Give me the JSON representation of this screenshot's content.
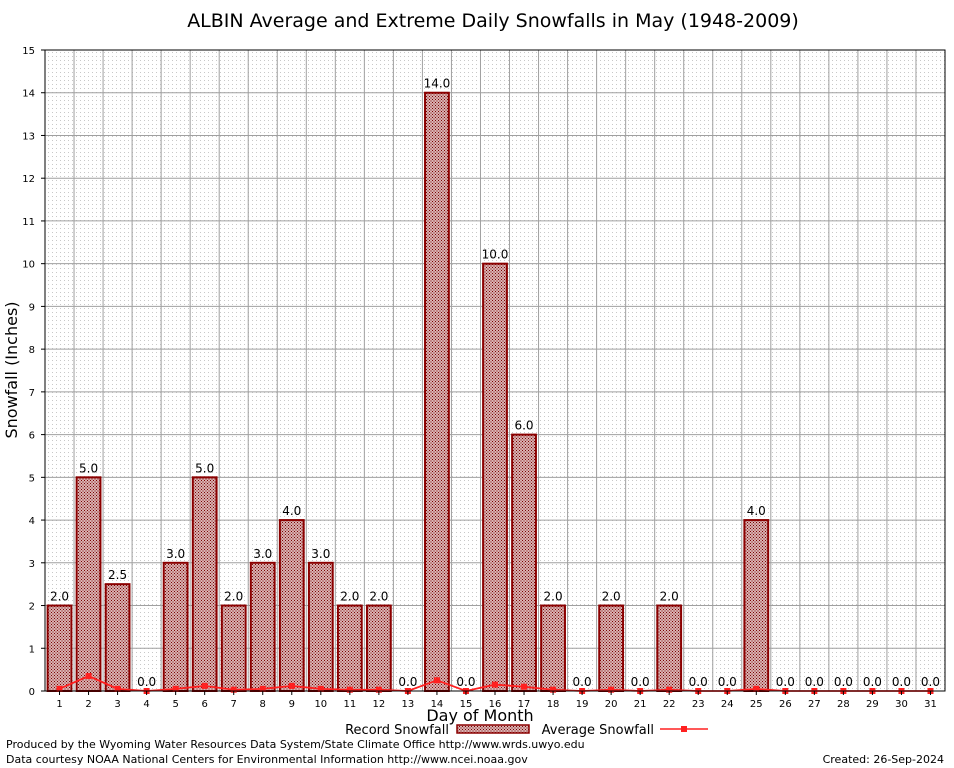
{
  "chart_data": {
    "type": "bar",
    "title": "ALBIN Average and Extreme Daily Snowfalls in May (1948-2009)",
    "xlabel": "Day of Month",
    "ylabel": "Snowfall (Inches)",
    "ylim": [
      0,
      15
    ],
    "yticks": [
      "0",
      "1",
      "2",
      "3",
      "4",
      "5",
      "6",
      "7",
      "8",
      "9",
      "10",
      "11",
      "12",
      "13",
      "14",
      "15"
    ],
    "grid": true,
    "legend_position": "bottom",
    "categories": [
      "1",
      "2",
      "3",
      "4",
      "5",
      "6",
      "7",
      "8",
      "9",
      "10",
      "11",
      "12",
      "13",
      "14",
      "15",
      "16",
      "17",
      "18",
      "19",
      "20",
      "21",
      "22",
      "23",
      "24",
      "25",
      "26",
      "27",
      "28",
      "29",
      "30",
      "31"
    ],
    "series": [
      {
        "name": "Record Snowfall",
        "kind": "bar",
        "color": "#8b0000",
        "values": [
          2.0,
          5.0,
          2.5,
          0.0,
          3.0,
          5.0,
          2.0,
          3.0,
          4.0,
          3.0,
          2.0,
          2.0,
          0.0,
          14.0,
          0.0,
          10.0,
          6.0,
          2.0,
          0.0,
          2.0,
          0.0,
          2.0,
          0.0,
          0.0,
          4.0,
          0.0,
          0.0,
          0.0,
          0.0,
          0.0,
          0.0
        ],
        "labels": [
          "2.0",
          "5.0",
          "2.5",
          "0.0",
          "3.0",
          "5.0",
          "2.0",
          "3.0",
          "4.0",
          "3.0",
          "2.0",
          "2.0",
          "0.0",
          "14.0",
          "0.0",
          "10.0",
          "6.0",
          "2.0",
          "0.0",
          "2.0",
          "0.0",
          "2.0",
          "0.0",
          "0.0",
          "4.0",
          "0.0",
          "0.0",
          "0.0",
          "0.0",
          "0.0",
          "0.0"
        ]
      },
      {
        "name": "Average Snowfall",
        "kind": "line",
        "color": "#ff2020",
        "values": [
          0.05,
          0.35,
          0.05,
          0.0,
          0.05,
          0.12,
          0.03,
          0.05,
          0.12,
          0.05,
          0.03,
          0.03,
          0.0,
          0.25,
          0.0,
          0.15,
          0.1,
          0.03,
          0.0,
          0.03,
          0.0,
          0.03,
          0.0,
          0.0,
          0.05,
          0.0,
          0.0,
          0.0,
          0.0,
          0.0,
          0.0
        ]
      }
    ]
  },
  "footer": {
    "line1": "Produced by the Wyoming Water Resources Data System/State Climate Office http://www.wrds.uwyo.edu",
    "line2": "Data courtesy NOAA National Centers for Environmental Information http://www.ncei.noaa.gov",
    "created": "Created:  26-Sep-2024"
  }
}
